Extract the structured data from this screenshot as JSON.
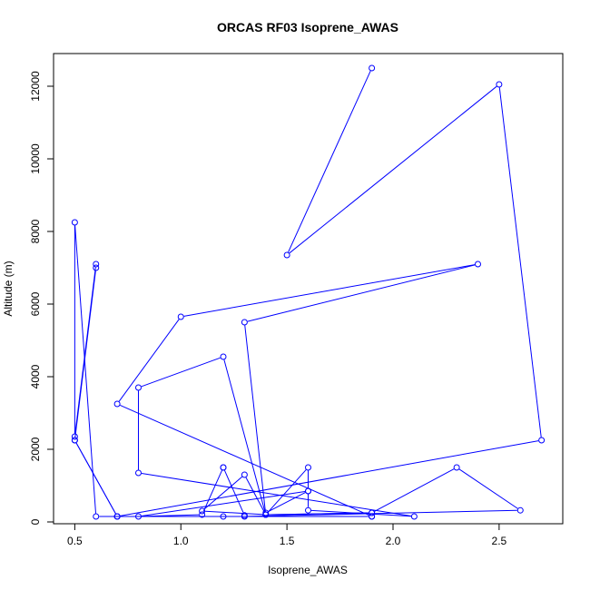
{
  "chart_data": {
    "type": "line",
    "title": "ORCAS RF03 Isoprene_AWAS",
    "xlabel": "Isoprene_AWAS",
    "ylabel": "Altitude (m)",
    "xlim": [
      0.4,
      2.8
    ],
    "ylim": [
      -50,
      12900
    ],
    "xticks": [
      "0.5",
      "1.0",
      "1.5",
      "2.0",
      "2.5"
    ],
    "yticks": [
      "0",
      "2000",
      "4000",
      "6000",
      "8000",
      "10000",
      "12000"
    ],
    "grid": false,
    "markers": "open-circle",
    "series": [
      {
        "color": "#0000ff",
        "points": [
          [
            0.5,
            2250
          ],
          [
            0.7,
            150
          ],
          [
            0.7,
            150
          ],
          [
            1.2,
            150
          ],
          [
            1.9,
            150
          ],
          [
            1.9,
            250
          ],
          [
            1.4,
            200
          ],
          [
            1.4,
            250
          ],
          [
            1.6,
            850
          ],
          [
            1.6,
            1500
          ],
          [
            1.4,
            200
          ],
          [
            1.1,
            300
          ],
          [
            1.3,
            1300
          ],
          [
            1.4,
            200
          ],
          [
            1.9,
            250
          ],
          [
            2.3,
            1500
          ],
          [
            2.6,
            320
          ],
          [
            1.3,
            150
          ],
          [
            1.3,
            180
          ],
          [
            1.2,
            1500
          ],
          [
            1.2,
            1500
          ],
          [
            1.1,
            200
          ],
          [
            0.8,
            150
          ],
          [
            1.6,
            850
          ],
          [
            1.6,
            320
          ],
          [
            2.1,
            150
          ],
          [
            0.8,
            1350
          ],
          [
            0.8,
            3700
          ],
          [
            1.2,
            4550
          ],
          [
            1.4,
            200
          ],
          [
            1.3,
            5500
          ],
          [
            2.4,
            7100
          ],
          [
            1.0,
            5650
          ],
          [
            0.7,
            3250
          ],
          [
            1.9,
            150
          ],
          [
            0.6,
            150
          ],
          [
            0.5,
            8250
          ],
          [
            0.5,
            2350
          ],
          [
            0.6,
            7100
          ],
          [
            0.6,
            7000
          ],
          [
            0.5,
            2250
          ],
          [
            0.7,
            150
          ],
          [
            2.7,
            2250
          ],
          [
            2.5,
            12050
          ],
          [
            1.5,
            7350
          ],
          [
            1.9,
            12500
          ]
        ]
      }
    ]
  }
}
